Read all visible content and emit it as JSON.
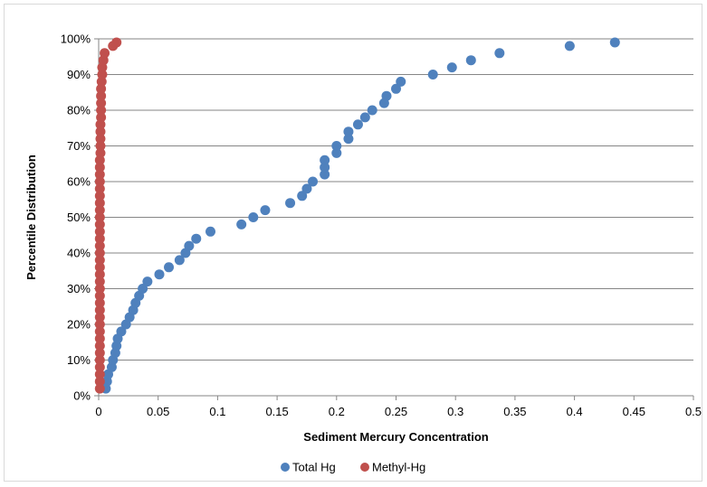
{
  "chart_data": {
    "type": "scatter",
    "title": "",
    "xlabel": "Sediment Mercury Concentration",
    "ylabel": "Percentile Distribution",
    "xlim": [
      0,
      0.5
    ],
    "ylim": [
      0,
      100
    ],
    "x_ticks": [
      "0",
      "0.05",
      "0.1",
      "0.15",
      "0.2",
      "0.25",
      "0.3",
      "0.35",
      "0.4",
      "0.45",
      "0.5"
    ],
    "y_ticks": [
      "0%",
      "10%",
      "20%",
      "30%",
      "40%",
      "50%",
      "60%",
      "70%",
      "80%",
      "90%",
      "100%"
    ],
    "grid": "horizontal",
    "legend_position": "bottom",
    "series": [
      {
        "name": "Total Hg",
        "color": "#4f81bd",
        "points": [
          [
            0.006,
            2
          ],
          [
            0.007,
            4
          ],
          [
            0.008,
            6
          ],
          [
            0.011,
            8
          ],
          [
            0.012,
            10
          ],
          [
            0.014,
            12
          ],
          [
            0.015,
            14
          ],
          [
            0.016,
            16
          ],
          [
            0.019,
            18
          ],
          [
            0.023,
            20
          ],
          [
            0.026,
            22
          ],
          [
            0.029,
            24
          ],
          [
            0.031,
            26
          ],
          [
            0.034,
            28
          ],
          [
            0.037,
            30
          ],
          [
            0.041,
            32
          ],
          [
            0.051,
            34
          ],
          [
            0.059,
            36
          ],
          [
            0.068,
            38
          ],
          [
            0.073,
            40
          ],
          [
            0.076,
            42
          ],
          [
            0.082,
            44
          ],
          [
            0.094,
            46
          ],
          [
            0.12,
            48
          ],
          [
            0.13,
            50
          ],
          [
            0.14,
            52
          ],
          [
            0.161,
            54
          ],
          [
            0.171,
            56
          ],
          [
            0.175,
            58
          ],
          [
            0.18,
            60
          ],
          [
            0.19,
            62
          ],
          [
            0.19,
            64
          ],
          [
            0.19,
            66
          ],
          [
            0.2,
            68
          ],
          [
            0.2,
            70
          ],
          [
            0.21,
            72
          ],
          [
            0.21,
            74
          ],
          [
            0.218,
            76
          ],
          [
            0.224,
            78
          ],
          [
            0.23,
            80
          ],
          [
            0.24,
            82
          ],
          [
            0.242,
            84
          ],
          [
            0.25,
            86
          ],
          [
            0.254,
            88
          ],
          [
            0.281,
            90
          ],
          [
            0.297,
            92
          ],
          [
            0.313,
            94
          ],
          [
            0.337,
            96
          ],
          [
            0.396,
            98
          ],
          [
            0.434,
            99
          ]
        ]
      },
      {
        "name": "Methyl-Hg",
        "color": "#c0504d",
        "points": [
          [
            0.001,
            2
          ],
          [
            0.001,
            4
          ],
          [
            0.001,
            6
          ],
          [
            0.001,
            8
          ],
          [
            0.001,
            10
          ],
          [
            0.001,
            12
          ],
          [
            0.001,
            14
          ],
          [
            0.001,
            16
          ],
          [
            0.001,
            18
          ],
          [
            0.001,
            20
          ],
          [
            0.001,
            22
          ],
          [
            0.001,
            24
          ],
          [
            0.001,
            26
          ],
          [
            0.001,
            28
          ],
          [
            0.001,
            30
          ],
          [
            0.001,
            32
          ],
          [
            0.001,
            34
          ],
          [
            0.001,
            36
          ],
          [
            0.001,
            38
          ],
          [
            0.001,
            40
          ],
          [
            0.001,
            42
          ],
          [
            0.001,
            44
          ],
          [
            0.001,
            46
          ],
          [
            0.001,
            48
          ],
          [
            0.001,
            50
          ],
          [
            0.001,
            52
          ],
          [
            0.001,
            54
          ],
          [
            0.001,
            56
          ],
          [
            0.001,
            58
          ],
          [
            0.001,
            60
          ],
          [
            0.001,
            62
          ],
          [
            0.001,
            64
          ],
          [
            0.001,
            66
          ],
          [
            0.0015,
            68
          ],
          [
            0.0015,
            70
          ],
          [
            0.0015,
            72
          ],
          [
            0.0015,
            74
          ],
          [
            0.0015,
            76
          ],
          [
            0.002,
            78
          ],
          [
            0.002,
            80
          ],
          [
            0.002,
            82
          ],
          [
            0.002,
            84
          ],
          [
            0.002,
            86
          ],
          [
            0.0025,
            88
          ],
          [
            0.003,
            90
          ],
          [
            0.003,
            92
          ],
          [
            0.004,
            94
          ],
          [
            0.005,
            96
          ],
          [
            0.012,
            98
          ],
          [
            0.015,
            99
          ]
        ]
      }
    ]
  }
}
